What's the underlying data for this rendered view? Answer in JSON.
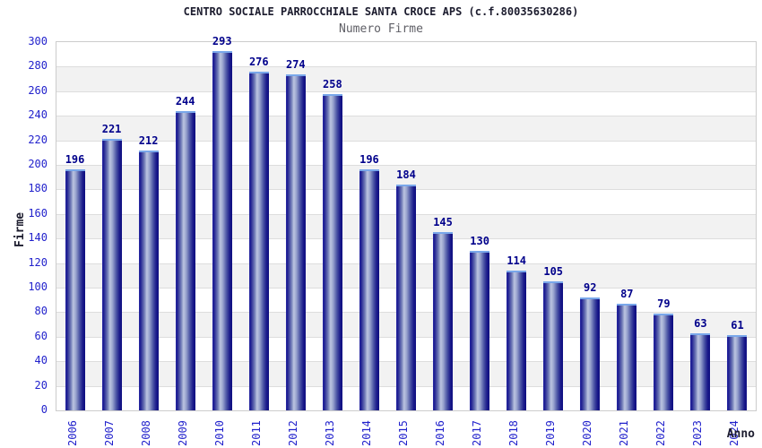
{
  "chart_data": {
    "type": "bar",
    "title": "CENTRO SOCIALE PARROCCHIALE SANTA CROCE APS (c.f.80035630286)",
    "subtitle": "Numero Firme",
    "xlabel": "Anno",
    "ylabel": "Firme",
    "categories": [
      "2006",
      "2007",
      "2008",
      "2009",
      "2010",
      "2011",
      "2012",
      "2013",
      "2014",
      "2015",
      "2016",
      "2017",
      "2018",
      "2019",
      "2020",
      "2021",
      "2022",
      "2023",
      "2024"
    ],
    "values": [
      196,
      221,
      212,
      244,
      293,
      276,
      274,
      258,
      196,
      184,
      145,
      130,
      114,
      105,
      92,
      87,
      79,
      63,
      61
    ],
    "ylim": [
      0,
      300
    ],
    "ytick_step": 20,
    "legend": "none",
    "grid": "horizontal-bands",
    "colors": {
      "bar_dark": "#0e0e80",
      "bar_light": "#bcc5e1",
      "bar_top_cap": "#79a7ea",
      "value_label": "#00008b",
      "tick_label": "#2222cc",
      "title": "#1c1c2e",
      "subtitle": "#5f5f66",
      "band_gray": "#f2f2f2",
      "band_white": "#ffffff",
      "gridline": "#dddddd",
      "plot_border": "#cccccc"
    }
  }
}
